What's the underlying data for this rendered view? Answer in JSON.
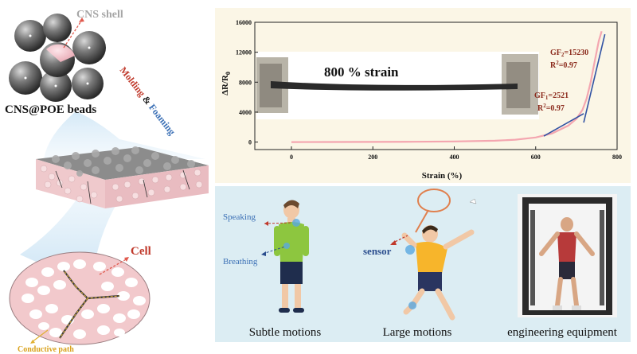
{
  "left": {
    "shell_label": "CNS shell",
    "beads_label": "CNS@POE beads",
    "process_word1": "Molding",
    "process_amp": " & ",
    "process_word2": "Foaming",
    "cell_label": "Cell",
    "path_label": "Conductive path"
  },
  "chart_data": {
    "type": "line",
    "xlabel": "Strain (%)",
    "ylabel": "ΔR/R",
    "ylabel_sub": "0",
    "xlim": [
      -90,
      800
    ],
    "ylim": [
      -1000,
      16000
    ],
    "xticks": [
      0,
      200,
      400,
      600,
      800
    ],
    "yticks": [
      0,
      4000,
      8000,
      12000,
      16000
    ],
    "xtick_labels": [
      "0",
      "200",
      "400",
      "600",
      "800"
    ],
    "ytick_labels": [
      "0",
      "4000",
      "8000",
      "12000",
      "16000"
    ],
    "series": [
      {
        "x": [
          0,
          100,
          200,
          300,
          400,
          500,
          550,
          600,
          640,
          680,
          700,
          715,
          725,
          735,
          745,
          755,
          762
        ],
        "y": [
          0,
          10,
          25,
          45,
          80,
          180,
          320,
          620,
          1150,
          2200,
          3100,
          4300,
          5800,
          8000,
          10800,
          13500,
          14800
        ]
      }
    ],
    "fits": [
      {
        "x": [
          620,
          718
        ],
        "y": [
          800,
          3800
        ]
      },
      {
        "x": [
          718,
          770
        ],
        "y": [
          2600,
          14400
        ]
      }
    ],
    "annotations": {
      "strain_text": "800 % strain",
      "gf2_label": "GF",
      "gf2_sub": "2",
      "gf2_value": "=15230",
      "r2_2_label": "R",
      "r2_2_sup": "2",
      "r2_2_value": "=0.97",
      "gf1_label": "GF",
      "gf1_sub": "1",
      "gf1_value": "=2521",
      "r2_1_label": "R",
      "r2_1_sup": "2",
      "r2_1_value": "=0.97"
    },
    "colors": {
      "curve": "#f4a6b0",
      "fit": "#3152a3",
      "axis": "#222222",
      "annot": "#8b2a1c"
    }
  },
  "bottom": {
    "speaking": "Speaking",
    "breathing": "Breathing",
    "sensor": "sensor",
    "caption_subtle": "Subtle motions",
    "caption_large": "Large motions",
    "caption_equipment": "engineering equipment"
  }
}
